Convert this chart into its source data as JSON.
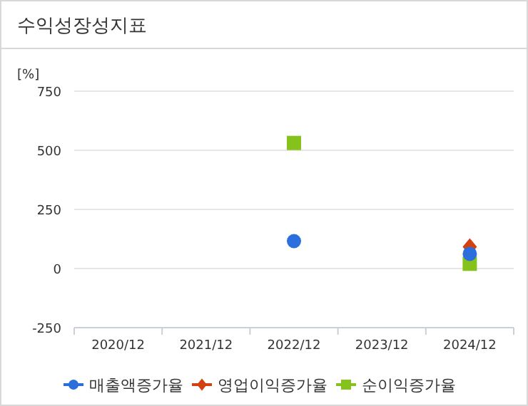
{
  "chart_data": {
    "type": "scatter",
    "title": "수익성장성지표",
    "ylabel": "[%]",
    "categories": [
      "2020/12",
      "2021/12",
      "2022/12",
      "2023/12",
      "2024/12"
    ],
    "series": [
      {
        "name": "매출액증가율",
        "color": "#2a6fdb",
        "marker": "circle",
        "values": [
          null,
          null,
          116,
          null,
          62
        ]
      },
      {
        "name": "영업이익증가율",
        "color": "#d2410f",
        "marker": "diamond",
        "values": [
          null,
          null,
          null,
          null,
          92
        ]
      },
      {
        "name": "순이익증가율",
        "color": "#86c21c",
        "marker": "square",
        "values": [
          null,
          null,
          531,
          null,
          20
        ]
      }
    ],
    "ylim": [
      -250,
      750
    ],
    "yticks": [
      -250,
      0,
      250,
      500,
      750
    ],
    "grid": "y",
    "legend": "bottom"
  }
}
